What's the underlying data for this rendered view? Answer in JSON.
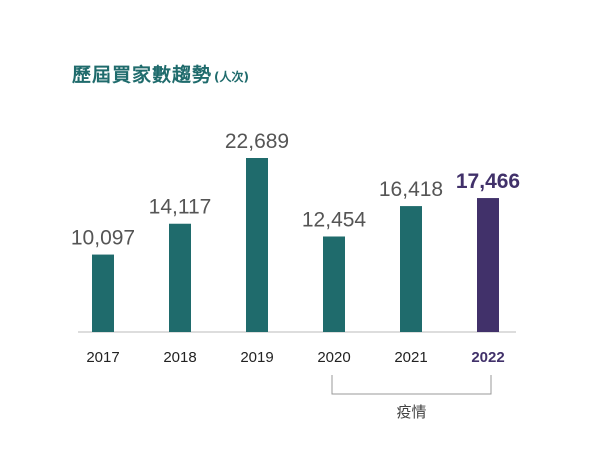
{
  "header": {
    "title": "歷屆買家數趨勢",
    "unit": "(人次)"
  },
  "chart_data": {
    "type": "bar",
    "categories": [
      "2017",
      "2018",
      "2019",
      "2020",
      "2021",
      "2022"
    ],
    "values": [
      10097,
      14117,
      22689,
      12454,
      16418,
      17466
    ],
    "value_labels": [
      "10,097",
      "14,117",
      "22,689",
      "12,454",
      "16,418",
      "17,466"
    ],
    "highlight_index": 5,
    "ylim": [
      0,
      22689
    ],
    "title": "歷屆買家數趨勢",
    "xlabel": "",
    "ylabel": "",
    "grid": false,
    "annotation": {
      "text": "疫情",
      "from_category": "2020",
      "to_category": "2022"
    },
    "colors": {
      "bar": "#1f6b6c",
      "highlight": "#41316a",
      "value_text": "#555555",
      "tick_text": "#222222"
    }
  }
}
